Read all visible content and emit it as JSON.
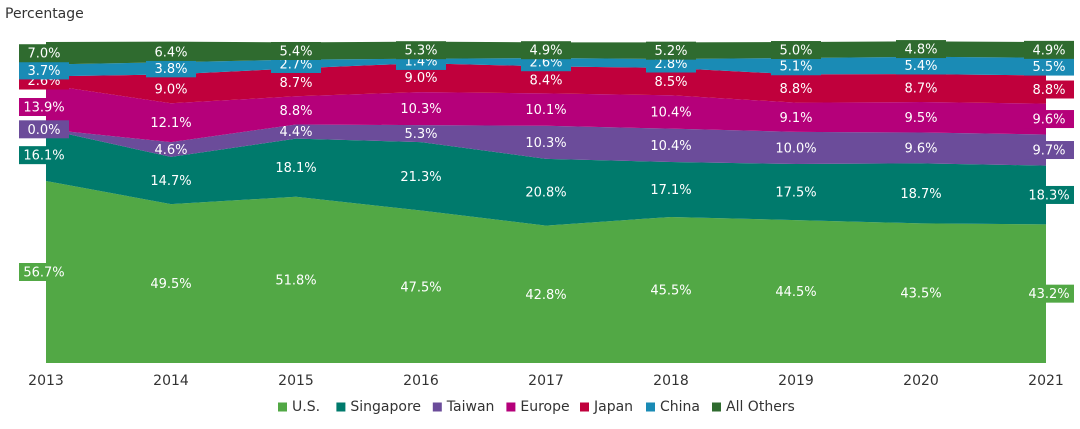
{
  "chart_data": {
    "type": "area",
    "stacked": true,
    "ylabel": "Percentage",
    "categories": [
      "2013",
      "2014",
      "2015",
      "2016",
      "2017",
      "2018",
      "2019",
      "2020",
      "2021"
    ],
    "series": [
      {
        "name": "U.S.",
        "color": "#52a845",
        "values": [
          56.7,
          49.5,
          51.8,
          47.5,
          42.8,
          45.5,
          44.5,
          43.5,
          43.2
        ],
        "labels": [
          "56.7%",
          "49.5%",
          "51.8%",
          "47.5%",
          "42.8%",
          "45.5%",
          "44.5%",
          "43.5%",
          "43.2%"
        ]
      },
      {
        "name": "Singapore",
        "color": "#007a6c",
        "values": [
          16.1,
          14.7,
          18.1,
          21.3,
          20.8,
          17.1,
          17.5,
          18.7,
          18.3
        ],
        "labels": [
          "16.1%",
          "14.7%",
          "18.1%",
          "21.3%",
          "20.8%",
          "17.1%",
          "17.5%",
          "18.7%",
          "18.3%"
        ]
      },
      {
        "name": "Taiwan",
        "color": "#6b4c9a",
        "values": [
          0.0,
          4.6,
          4.4,
          5.3,
          10.3,
          10.4,
          10.0,
          9.6,
          9.7
        ],
        "labels": [
          "0.0%",
          "4.6%",
          "4.4%",
          "5.3%",
          "10.3%",
          "10.4%",
          "10.0%",
          "9.6%",
          "9.7%"
        ]
      },
      {
        "name": "Europe",
        "color": "#b5007a",
        "values": [
          13.9,
          12.1,
          8.8,
          10.3,
          10.1,
          10.4,
          9.1,
          9.5,
          9.6
        ],
        "labels": [
          "13.9%",
          "12.1%",
          "8.8%",
          "10.3%",
          "10.1%",
          "10.4%",
          "9.1%",
          "9.5%",
          "9.6%"
        ]
      },
      {
        "name": "Japan",
        "color": "#c0003c",
        "values": [
          2.6,
          9.0,
          8.7,
          9.0,
          8.4,
          8.5,
          8.8,
          8.7,
          8.8
        ],
        "labels": [
          "2.6%",
          "9.0%",
          "8.7%",
          "9.0%",
          "8.4%",
          "8.5%",
          "8.8%",
          "8.7%",
          "8.8%"
        ]
      },
      {
        "name": "China",
        "color": "#1a8bb5",
        "values": [
          3.7,
          3.8,
          2.7,
          1.4,
          2.6,
          2.8,
          5.1,
          5.4,
          5.5
        ],
        "labels": [
          "3.7%",
          "3.8%",
          "2.7%",
          "1.4%",
          "2.6%",
          "2.8%",
          "5.1%",
          "5.4%",
          "5.5%"
        ]
      },
      {
        "name": "All Others",
        "color": "#2f6b2f",
        "values": [
          7.0,
          6.4,
          5.4,
          5.3,
          4.9,
          5.2,
          5.0,
          4.8,
          4.9
        ],
        "labels": [
          "7.0%",
          "6.4%",
          "5.4%",
          "5.3%",
          "4.9%",
          "5.2%",
          "5.0%",
          "4.8%",
          "4.9%"
        ]
      }
    ],
    "ylim": [
      0,
      100
    ],
    "grid": false,
    "legend": "bottom"
  }
}
